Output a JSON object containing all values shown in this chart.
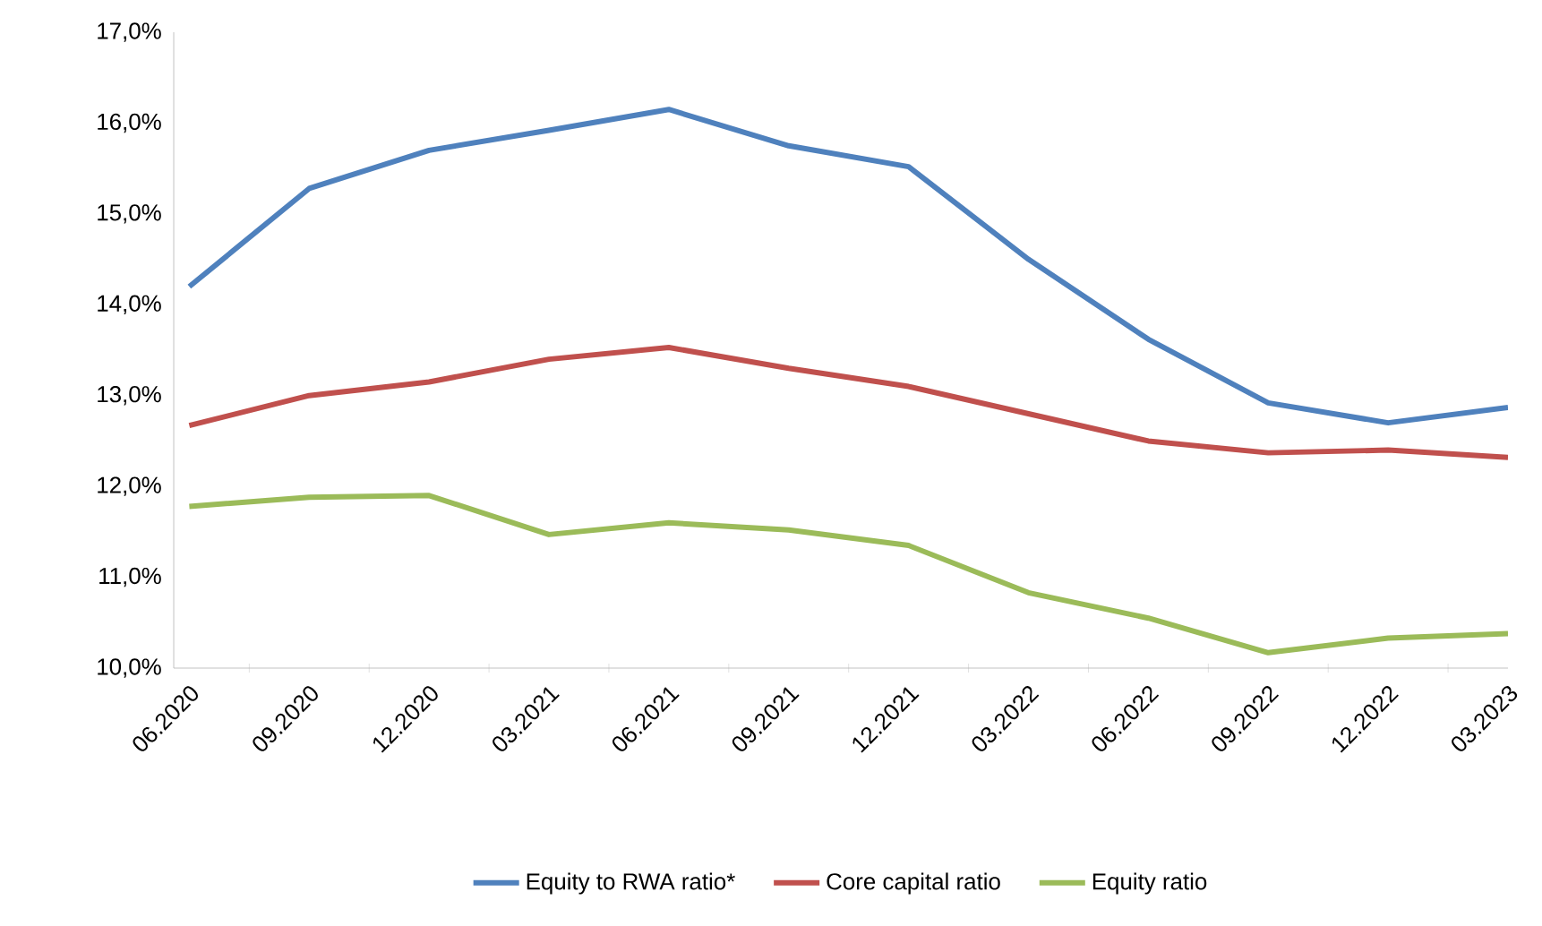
{
  "chart_data": {
    "type": "line",
    "categories": [
      "06.2020",
      "09.2020",
      "12.2020",
      "03.2021",
      "06.2021",
      "09.2021",
      "12.2021",
      "03.2022",
      "06.2022",
      "09.2022",
      "12.2022",
      "03.2023"
    ],
    "series": [
      {
        "name": "Equity to RWA ratio*",
        "color": "#4f81bd",
        "values": [
          14.2,
          15.28,
          15.7,
          15.92,
          16.15,
          15.75,
          15.52,
          14.5,
          13.62,
          12.92,
          12.7,
          12.87
        ]
      },
      {
        "name": "Core capital ratio",
        "color": "#c0504d",
        "values": [
          12.67,
          13.0,
          13.15,
          13.4,
          13.53,
          13.3,
          13.1,
          12.8,
          12.5,
          12.37,
          12.4,
          12.32
        ]
      },
      {
        "name": "Equity ratio",
        "color": "#9bbb59",
        "values": [
          11.78,
          11.88,
          11.9,
          11.47,
          11.6,
          11.52,
          11.35,
          10.83,
          10.55,
          10.17,
          10.33,
          10.38
        ]
      }
    ],
    "ylim": [
      10,
      17
    ],
    "yticks": [
      {
        "value": 10,
        "label": "10,0%"
      },
      {
        "value": 11,
        "label": "11,0%"
      },
      {
        "value": 12,
        "label": "12,0%"
      },
      {
        "value": 13,
        "label": "13,0%"
      },
      {
        "value": 14,
        "label": "14,0%"
      },
      {
        "value": 15,
        "label": "15,0%"
      },
      {
        "value": 16,
        "label": "16,0%"
      },
      {
        "value": 17,
        "label": "17,0%"
      }
    ],
    "legend": "bottom",
    "grid": false,
    "marker": "none",
    "line_style": "solid"
  }
}
